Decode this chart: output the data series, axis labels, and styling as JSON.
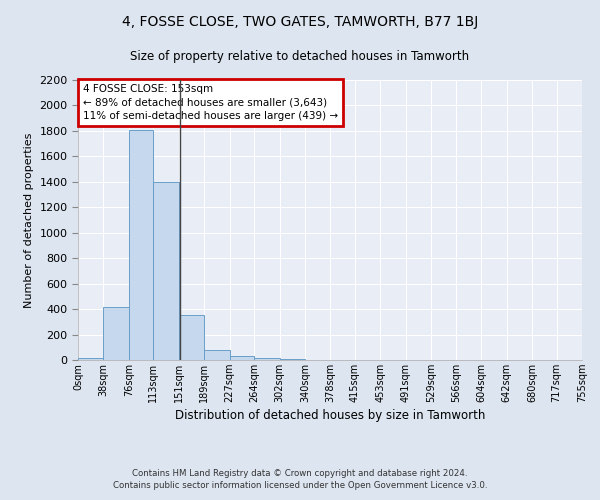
{
  "title": "4, FOSSE CLOSE, TWO GATES, TAMWORTH, B77 1BJ",
  "subtitle": "Size of property relative to detached houses in Tamworth",
  "xlabel": "Distribution of detached houses by size in Tamworth",
  "ylabel": "Number of detached properties",
  "footer_line1": "Contains HM Land Registry data © Crown copyright and database right 2024.",
  "footer_line2": "Contains public sector information licensed under the Open Government Licence v3.0.",
  "bar_color": "#c5d8ee",
  "bar_edge_color": "#6b9fc8",
  "background_color": "#dde5f0",
  "plot_bg_color": "#e8edf6",
  "grid_color": "#ffffff",
  "vline_color": "#444444",
  "annotation_text": "4 FOSSE CLOSE: 153sqm\n← 89% of detached houses are smaller (3,643)\n11% of semi-detached houses are larger (439) →",
  "annotation_box_color": "#cc0000",
  "property_size": 153,
  "bin_edges": [
    0,
    38,
    76,
    113,
    151,
    189,
    227,
    264,
    302,
    340,
    378,
    415,
    453,
    491,
    529,
    566,
    604,
    642,
    680,
    717,
    755
  ],
  "bin_labels": [
    "0sqm",
    "38sqm",
    "76sqm",
    "113sqm",
    "151sqm",
    "189sqm",
    "227sqm",
    "264sqm",
    "302sqm",
    "340sqm",
    "378sqm",
    "415sqm",
    "453sqm",
    "491sqm",
    "529sqm",
    "566sqm",
    "604sqm",
    "642sqm",
    "680sqm",
    "717sqm",
    "755sqm"
  ],
  "bar_heights": [
    15,
    420,
    1810,
    1400,
    350,
    80,
    30,
    15,
    5,
    0,
    0,
    0,
    0,
    0,
    0,
    0,
    0,
    0,
    0,
    0
  ],
  "ylim": [
    0,
    2200
  ],
  "yticks": [
    0,
    200,
    400,
    600,
    800,
    1000,
    1200,
    1400,
    1600,
    1800,
    2000,
    2200
  ]
}
